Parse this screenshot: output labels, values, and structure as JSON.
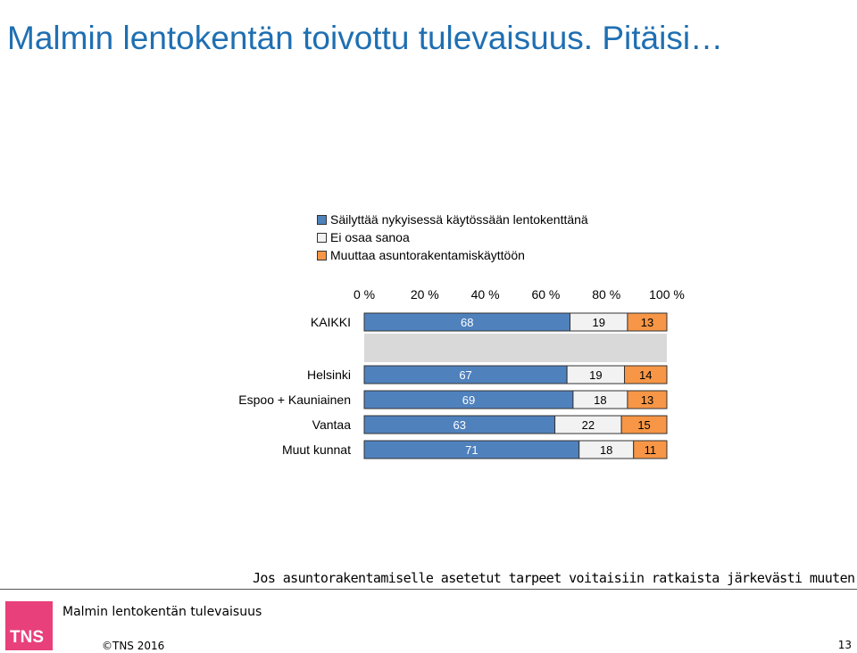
{
  "page": {
    "title": "Malmin lentokentän toivottu tulevaisuus. Pitäisi…",
    "footer_question": "Jos asuntorakentamiselle asetetut tarpeet voitaisiin ratkaista järkevästi muuten",
    "footer_subtitle": "Malmin lentokentän tulevaisuus",
    "logo_text": "TNS",
    "copyright": "©TNS 2016",
    "page_number": "13"
  },
  "chart_data": {
    "type": "bar",
    "orientation": "horizontal",
    "stacked": true,
    "percent": true,
    "categories": [
      "KAIKKI",
      "Helsinki",
      "Espoo + Kauniainen",
      "Vantaa",
      "Muut kunnat"
    ],
    "series": [
      {
        "name": "Säilyttää nykyisessä käytössään lentokenttänä",
        "color": "#4f81bd",
        "values": [
          68,
          67,
          69,
          63,
          71
        ]
      },
      {
        "name": "Ei osaa sanoa",
        "color": "#f2f2f2",
        "values": [
          19,
          19,
          18,
          22,
          18
        ]
      },
      {
        "name": "Muuttaa asuntorakentamiskäyttöön",
        "color": "#f79646",
        "values": [
          13,
          14,
          13,
          15,
          11
        ]
      }
    ],
    "x_ticks": [
      "0 %",
      "20 %",
      "40 %",
      "60 %",
      "80 %",
      "100 %"
    ],
    "xlim": [
      0,
      100
    ],
    "legend_position": "top-left",
    "grid": false
  }
}
